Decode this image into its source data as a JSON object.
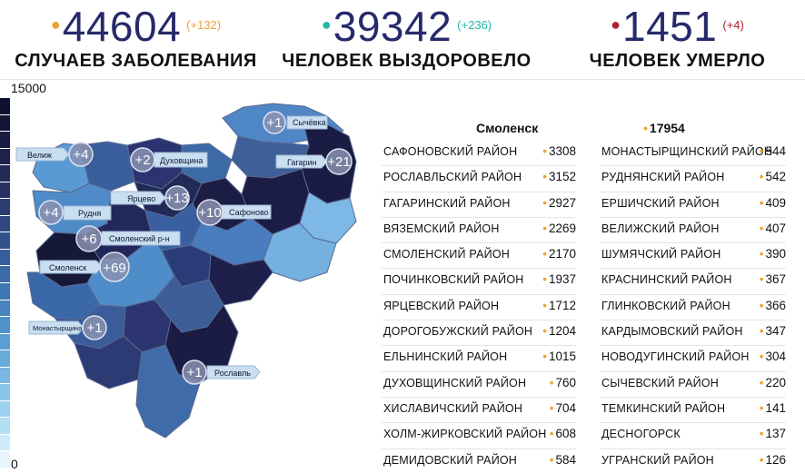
{
  "stats": {
    "cases": {
      "value": "44604",
      "delta": "(+132)",
      "label": "СЛУЧАЕВ ЗАБОЛЕВАНИЯ",
      "dot_color": "#f0a030",
      "delta_color": "#f0a030"
    },
    "recovered": {
      "value": "39342",
      "delta": "(+236)",
      "label": "ЧЕЛОВЕК ВЫЗДОРОВЕЛО",
      "dot_color": "#20b8a8",
      "delta_color": "#20b8a8"
    },
    "deaths": {
      "value": "1451",
      "delta": "(+4)",
      "label": "ЧЕЛОВЕК УМЕРЛО",
      "dot_color": "#b02030",
      "delta_color": "#b02030"
    }
  },
  "scale": {
    "max_label": "15000",
    "min_label": "0"
  },
  "map": {
    "tags": [
      {
        "id": "sychevka",
        "label": "Сычёвка",
        "delta": "+1"
      },
      {
        "id": "velizh",
        "label": "Велиж",
        "delta": "+4"
      },
      {
        "id": "dukhovshchina",
        "label": "Духовщина",
        "delta": "+2"
      },
      {
        "id": "gagarin",
        "label": "Гагарин",
        "delta": "+21"
      },
      {
        "id": "yartsevo",
        "label": "Ярцево",
        "delta": "+13"
      },
      {
        "id": "safonovo",
        "label": "Сафоново",
        "delta": "+10"
      },
      {
        "id": "rudnya",
        "label": "Рудня",
        "delta": "+4"
      },
      {
        "id": "smolensk-rn",
        "label": "Смоленский р-н",
        "delta": "+6"
      },
      {
        "id": "smolensk",
        "label": "Смоленск",
        "delta": "+69"
      },
      {
        "id": "monastyrshchina",
        "label": "Монастырщина",
        "delta": "+1"
      },
      {
        "id": "roslavl",
        "label": "Рославль",
        "delta": "+1"
      }
    ]
  },
  "table": {
    "head_city": "Смоленск",
    "head_value": "17954",
    "left": [
      {
        "name": "САФОНОВСКИЙ РАЙОН",
        "value": "3308"
      },
      {
        "name": "РОСЛАВЛЬСКИЙ РАЙОН",
        "value": "3152"
      },
      {
        "name": "ГАГАРИНСКИЙ РАЙОН",
        "value": "2927"
      },
      {
        "name": "ВЯЗЕМСКИЙ РАЙОН",
        "value": "2269"
      },
      {
        "name": "СМОЛЕНСКИЙ РАЙОН",
        "value": "2170"
      },
      {
        "name": "ПОЧИНКОВСКИЙ РАЙОН",
        "value": "1937"
      },
      {
        "name": "ЯРЦЕВСКИЙ РАЙОН",
        "value": "1712"
      },
      {
        "name": "ДОРОГОБУЖСКИЙ РАЙОН",
        "value": "1204"
      },
      {
        "name": "ЕЛЬНИНСКИЙ РАЙОН",
        "value": "1015"
      },
      {
        "name": "ДУХОВЩИНСКИЙ РАЙОН",
        "value": "760"
      },
      {
        "name": "ХИСЛАВИЧСКИЙ РАЙОН",
        "value": "704"
      },
      {
        "name": "ХОЛМ-ЖИРКОВСКИЙ РАЙОН",
        "value": "608"
      },
      {
        "name": "ДЕМИДОВСКИЙ РАЙОН",
        "value": "584"
      }
    ],
    "right": [
      {
        "name": "МОНАСТЫРЩИНСКИЙ РАЙОН",
        "value": "544"
      },
      {
        "name": "РУДНЯНСКИЙ РАЙОН",
        "value": "542"
      },
      {
        "name": "ЕРШИЧСКИЙ РАЙОН",
        "value": "409"
      },
      {
        "name": "ВЕЛИЖСКИЙ РАЙОН",
        "value": "407"
      },
      {
        "name": "ШУМЯЧСКИЙ РАЙОН",
        "value": "390"
      },
      {
        "name": "КРАСНИНСКИЙ РАЙОН",
        "value": "367"
      },
      {
        "name": "ГЛИНКОВСКИЙ РАЙОН",
        "value": "366"
      },
      {
        "name": "КАРДЫМОВСКИЙ РАЙОН",
        "value": "347"
      },
      {
        "name": "НОВОДУГИНСКИЙ РАЙОН",
        "value": "304"
      },
      {
        "name": "СЫЧЕВСКИЙ РАЙОН",
        "value": "220"
      },
      {
        "name": "ТЕМКИНСКИЙ РАЙОН",
        "value": "141"
      },
      {
        "name": "ДЕСНОГОРСК",
        "value": "137"
      },
      {
        "name": "УГРАНСКИЙ РАЙОН",
        "value": "126"
      }
    ]
  }
}
